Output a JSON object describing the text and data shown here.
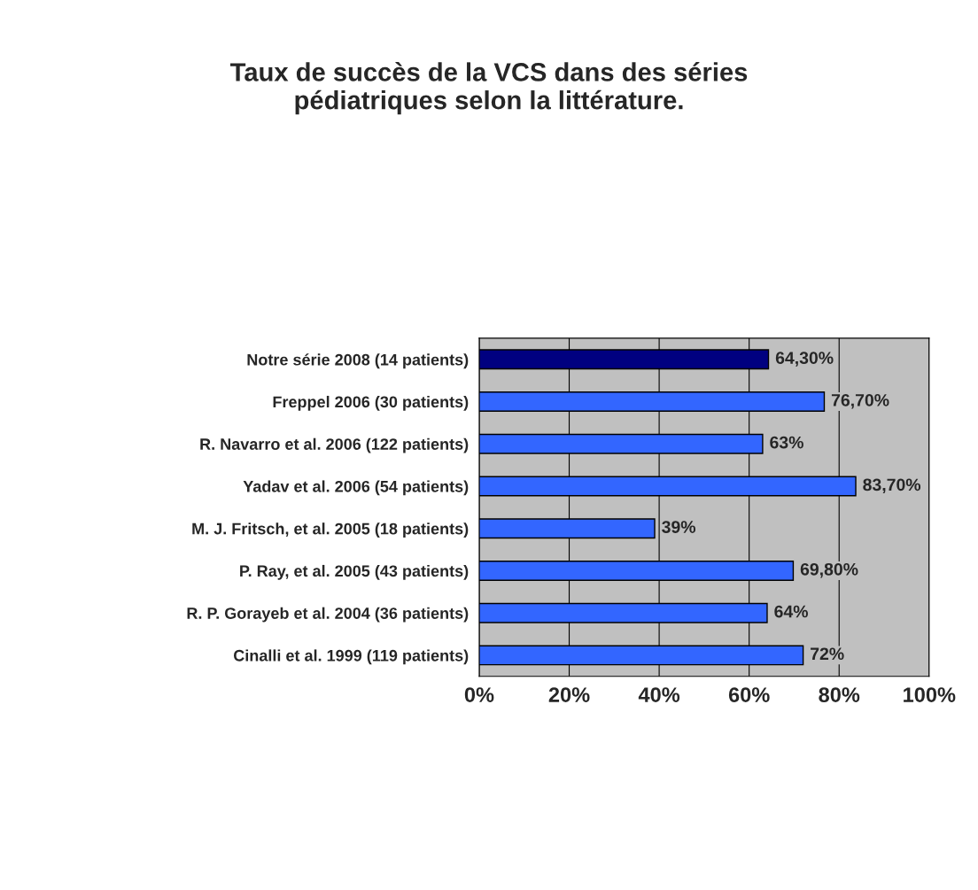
{
  "chart_data": {
    "type": "bar",
    "orientation": "horizontal",
    "title": "Taux de succès de la VCS dans des séries\npédiatriques selon la littérature.",
    "categories": [
      "Notre série 2008 (14 patients)",
      "Freppel 2006 (30 patients)",
      "R. Navarro et al. 2006 (122 patients)",
      "Yadav et al. 2006 (54 patients)",
      "M. J. Fritsch, et al. 2005 (18 patients)",
      "P. Ray, et al. 2005 (43 patients)",
      "R. P. Gorayeb et al. 2004 (36 patients)",
      "Cinalli et al. 1999 (119 patients)"
    ],
    "values": [
      64.3,
      76.7,
      63,
      83.7,
      39,
      69.8,
      64,
      72
    ],
    "value_labels": [
      "64,30%",
      "76,70%",
      "63%",
      "83,70%",
      "39%",
      "69,80%",
      "64%",
      "72%"
    ],
    "colors": [
      "#000080",
      "#3366ff",
      "#3366ff",
      "#3366ff",
      "#3366ff",
      "#3366ff",
      "#3366ff",
      "#3366ff"
    ],
    "xlim": [
      0,
      100
    ],
    "xticks": [
      {
        "value": 0,
        "label": "0%"
      },
      {
        "value": 20,
        "label": "20%"
      },
      {
        "value": 40,
        "label": "40%"
      },
      {
        "value": 60,
        "label": "60%"
      },
      {
        "value": 80,
        "label": "80%"
      },
      {
        "value": 100,
        "label": "100%"
      }
    ],
    "grid": "x",
    "legend": false
  }
}
